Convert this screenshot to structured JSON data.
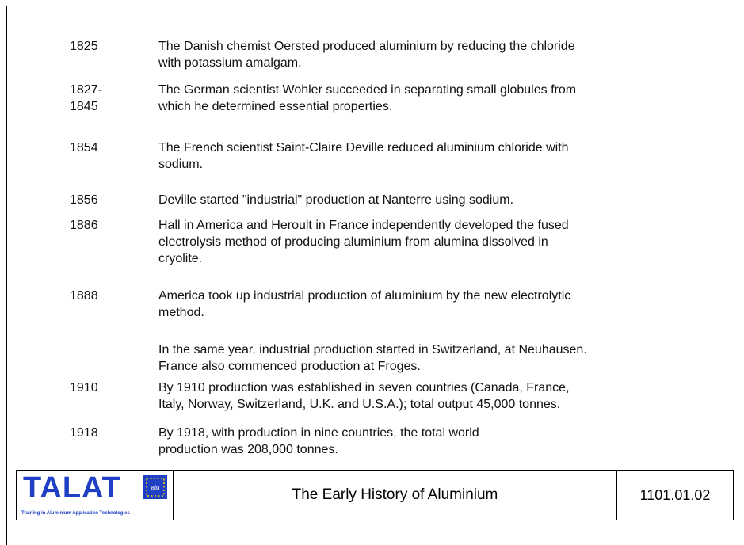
{
  "entries": [
    {
      "years": [
        "1825"
      ],
      "lines": [
        "The Danish chemist Oersted produced aluminium by reducing the chloride",
        "with potassium amalgam."
      ]
    },
    {
      "years": [
        "1827-",
        "1845"
      ],
      "lines": [
        "The German scientist Wohler succeeded in separating small globules from",
        "which he determined essential properties."
      ]
    },
    {
      "years": [
        "1854"
      ],
      "lines": [
        "The French scientist Saint-Claire Deville reduced aluminium chloride with",
        "sodium."
      ]
    },
    {
      "years": [
        "1856"
      ],
      "lines": [
        "Deville started \"industrial\" production at Nanterre using sodium."
      ]
    },
    {
      "years": [
        "1886"
      ],
      "lines": [
        "Hall in America and Heroult in France independently developed the fused",
        "electrolysis method of producing aluminium from alumina dissolved in",
        "cryolite."
      ]
    },
    {
      "years": [
        "1888"
      ],
      "lines": [
        "America took up industrial production of aluminium by the new electrolytic",
        "method."
      ]
    },
    {
      "years": [],
      "lines": [
        "In the same year, industrial production started in Switzerland, at Neuhausen.",
        "France also commenced production at Froges."
      ]
    },
    {
      "years": [
        "1910"
      ],
      "lines": [
        "By 1910 production was established in seven countries (Canada, France,",
        "Italy, Norway, Switzerland, U.K. and U.S.A.); total output 45,000 tonnes."
      ]
    },
    {
      "years": [
        "1918"
      ],
      "lines": [
        "By 1918, with production in nine countries, the total world",
        "production was 208,000 tonnes."
      ]
    }
  ],
  "footer": {
    "logo": "TALAT",
    "logo_badge": "alu",
    "logo_subtitle": "Training in Aluminium Application Technologies",
    "title": "The Early History of Aluminium",
    "code": "1101.01.02"
  }
}
